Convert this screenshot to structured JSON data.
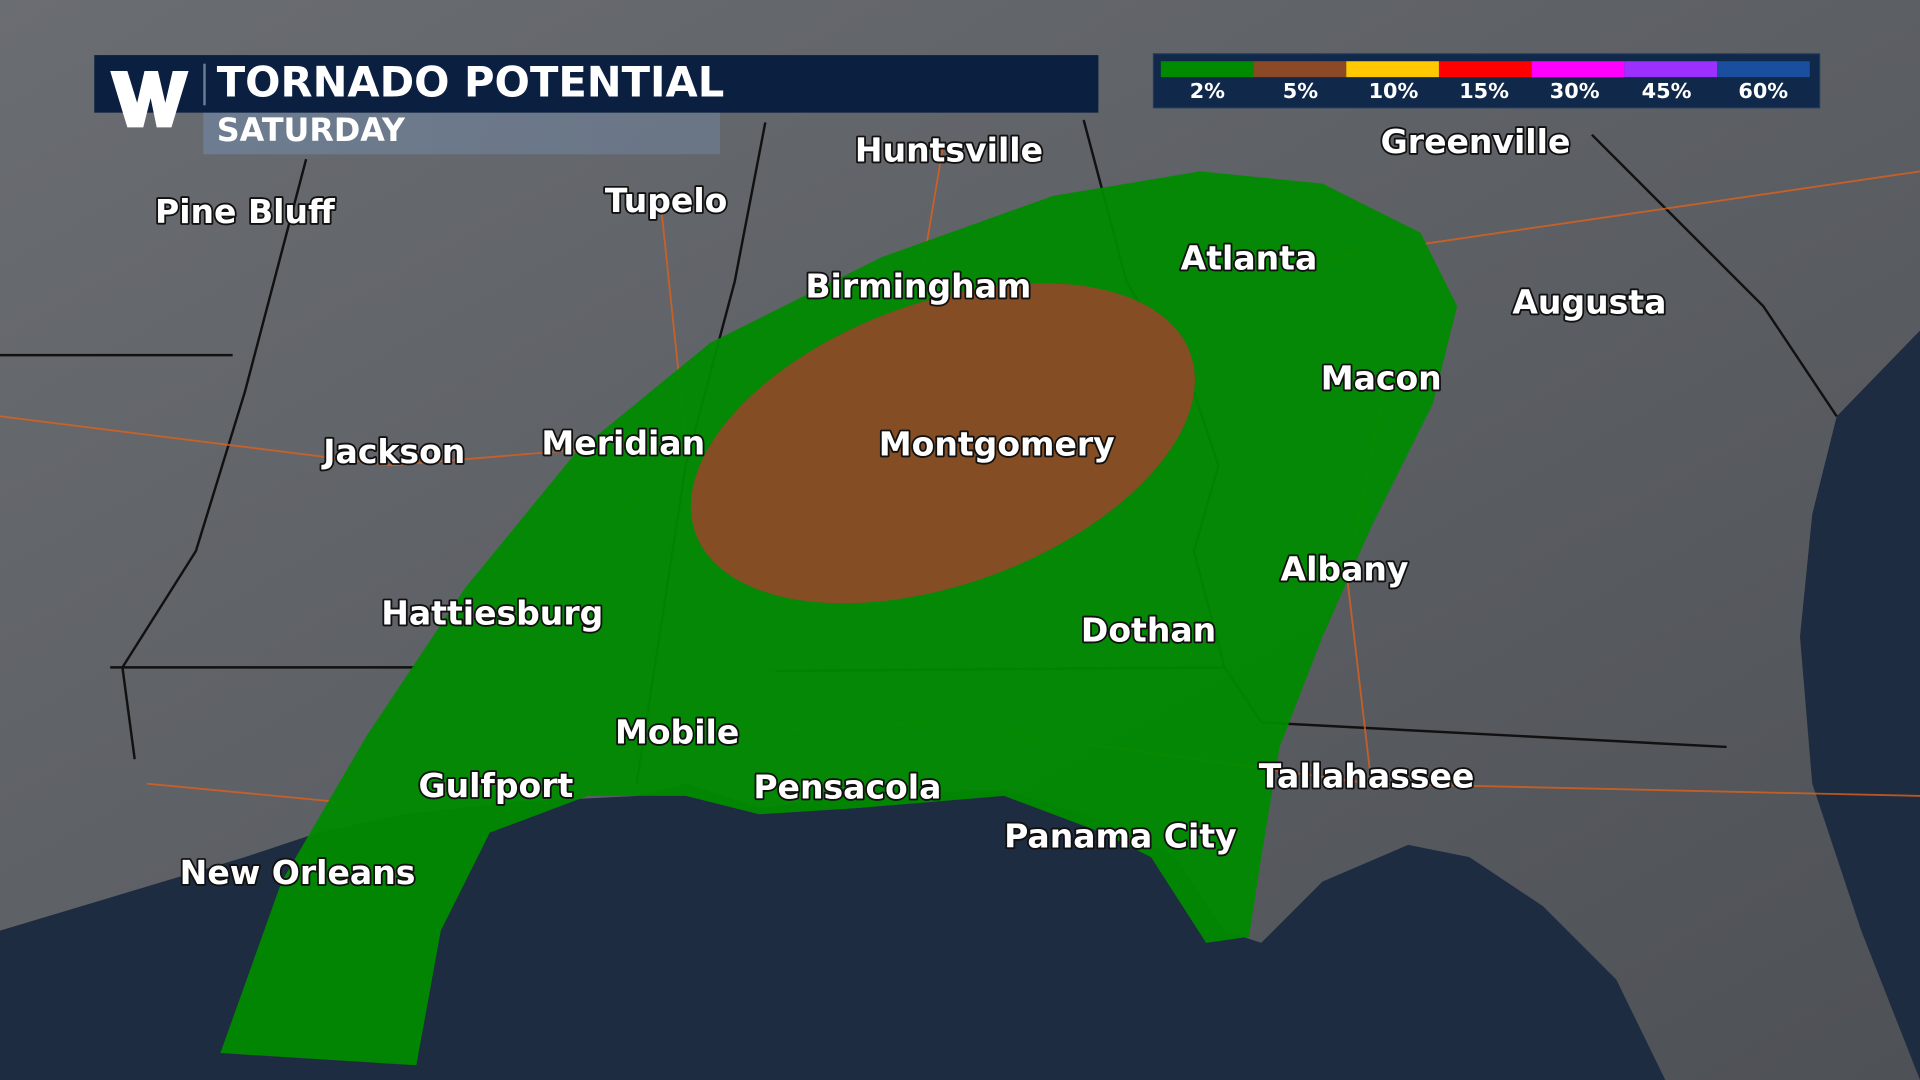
{
  "header": {
    "title": "TORNADO POTENTIAL",
    "subtitle": "SATURDAY",
    "logo_text": "W"
  },
  "legend": {
    "items": [
      {
        "label": "2%",
        "color": "#008a00"
      },
      {
        "label": "5%",
        "color": "#8b4a25"
      },
      {
        "label": "10%",
        "color": "#ffc800"
      },
      {
        "label": "15%",
        "color": "#ff0000"
      },
      {
        "label": "30%",
        "color": "#ff00ff"
      },
      {
        "label": "45%",
        "color": "#9b30ff"
      },
      {
        "label": "60%",
        "color": "#1a4fa0"
      }
    ]
  },
  "cities": [
    "Huntsville",
    "Greenville",
    "Pine Bluff",
    "Tupelo",
    "Birmingham",
    "Atlanta",
    "Augusta",
    "Macon",
    "Jackson",
    "Meridian",
    "Montgomery",
    "Albany",
    "Hattiesburg",
    "Dothan",
    "Mobile",
    "Gulfport",
    "Pensacola",
    "Tallahassee",
    "Panama City",
    "New Orleans"
  ],
  "colors": {
    "land": "#5b5e63",
    "ocean": "#1d2c40",
    "header_bg": "#0b1f40",
    "risk_2": "#008a00",
    "risk_5": "#8b4a25"
  }
}
